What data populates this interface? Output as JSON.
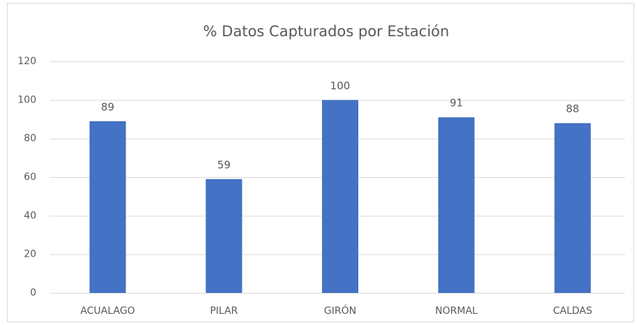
{
  "chart_data": {
    "type": "bar",
    "title": "% Datos Capturados por Estación",
    "categories": [
      "ACUALAGO",
      "PILAR",
      "GIRÓN",
      "NORMAL",
      "CALDAS"
    ],
    "values": [
      89,
      59,
      100,
      91,
      88
    ],
    "color": "#4472c4",
    "ylim": [
      0,
      120
    ],
    "yticks": [
      0,
      20,
      40,
      60,
      80,
      100,
      120
    ],
    "grid": true
  }
}
